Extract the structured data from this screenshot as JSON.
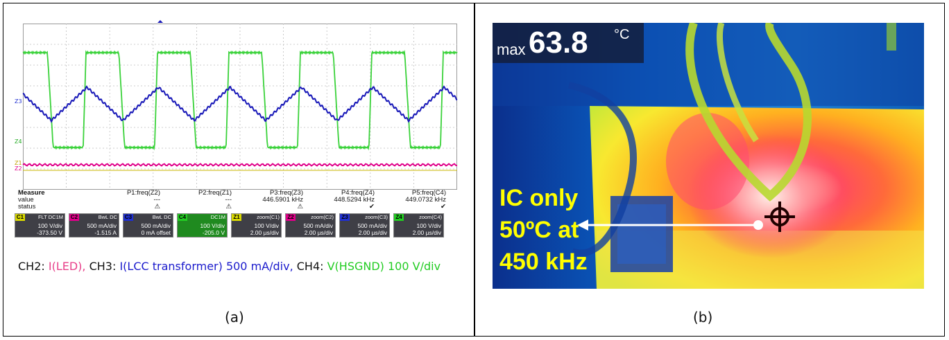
{
  "panel_a": {
    "measure": {
      "title": "Measure",
      "row_value": "value",
      "row_status": "status",
      "items": [
        {
          "label": "P1:freq(Z2)",
          "value": "---"
        },
        {
          "label": "P2:freq(Z1)",
          "value": "---"
        },
        {
          "label": "P3:freq(Z3)",
          "value": "446.5901 kHz"
        },
        {
          "label": "P4:freq(Z4)",
          "value": "448.5294 kHz"
        },
        {
          "label": "P5:freq(C4)",
          "value": "449.0732 kHz"
        }
      ]
    },
    "trace_labels": {
      "z3": "Z3",
      "z4": "Z4",
      "z1": "Z1",
      "z2": "Z2"
    },
    "channels": [
      {
        "tag": "C1",
        "mode": "FLT DC1M",
        "line1": "100 V/div",
        "line2": "-373.50 V",
        "color": "#d8d800"
      },
      {
        "tag": "C2",
        "mode": "BwL DC",
        "line1": "500 mA/div",
        "line2": "-1.515 A",
        "color": "#e0008a"
      },
      {
        "tag": "C3",
        "mode": "BwL DC",
        "line1": "500 mA/div",
        "line2": "0 mA offset",
        "color": "#2030d0"
      },
      {
        "tag": "C4",
        "mode": "DC1M",
        "line1": "100 V/div",
        "line2": "-205.0 V",
        "color": "#22cc22"
      },
      {
        "tag": "Z1",
        "mode": "zoom(C1)",
        "line1": "100 V/div",
        "line2": "2.00 µs/div",
        "color": "#d8d800"
      },
      {
        "tag": "Z2",
        "mode": "zoom(C2)",
        "line1": "500 mA/div",
        "line2": "2.00 µs/div",
        "color": "#e0008a"
      },
      {
        "tag": "Z3",
        "mode": "zoom(C3)",
        "line1": "500 mA/div",
        "line2": "2.00 µs/div",
        "color": "#2030d0"
      },
      {
        "tag": "Z4",
        "mode": "zoom(C4)",
        "line1": "100 V/div",
        "line2": "2.00 µs/div",
        "color": "#22cc22"
      }
    ],
    "caption": {
      "ch2_prefix": "CH2: ",
      "ch2_text": "I(LED),",
      "ch3_prefix": " CH3: ",
      "ch3_text": "I(LCC transformer) 500 mA/div,",
      "ch4_prefix": " CH4: ",
      "ch4_text": "V(HSGND) 100 V/div"
    },
    "colors": {
      "pink": "#e8408a",
      "blue": "#1a1acc",
      "green": "#22cc22"
    },
    "sublabel": "(a)"
  },
  "panel_b": {
    "max_prefix": "max",
    "max_value": "63.8",
    "unit": "°C",
    "annotation": [
      "IC only",
      "50ºC at",
      "450 kHz"
    ],
    "sublabel": "(b)"
  }
}
